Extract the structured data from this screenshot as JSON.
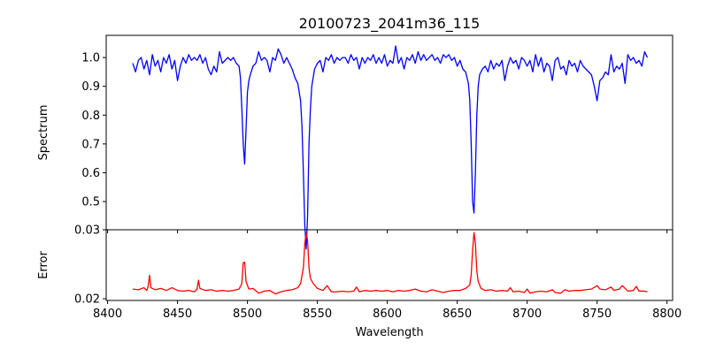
{
  "chart_data": [
    {
      "type": "line",
      "panel": "top",
      "title": "20100723_2041m36_115",
      "xlabel": "",
      "ylabel": "Spectrum",
      "xlim": [
        8399,
        8804
      ],
      "ylim": [
        0.402,
        1.077
      ],
      "xticks": [
        8400,
        8450,
        8500,
        8550,
        8600,
        8650,
        8700,
        8750,
        8800
      ],
      "yticks": [
        0.5,
        0.6,
        0.7,
        0.8,
        0.9,
        1.0
      ],
      "ytick_labels": [
        "0.5",
        "0.6",
        "0.7",
        "0.8",
        "0.9",
        "1.0"
      ],
      "grid": false,
      "series": [
        {
          "name": "Spectrum",
          "color": "#0000ff",
          "x": [
            8418,
            8420,
            8422,
            8424,
            8426,
            8428,
            8430,
            8432,
            8434,
            8436,
            8438,
            8440,
            8442,
            8444,
            8446,
            8448,
            8450,
            8452,
            8454,
            8456,
            8458,
            8460,
            8462,
            8464,
            8466,
            8468,
            8470,
            8472,
            8474,
            8476,
            8478,
            8480,
            8482,
            8484,
            8486,
            8488,
            8490,
            8492,
            8494,
            8495,
            8496,
            8497,
            8498,
            8499,
            8500,
            8501,
            8502,
            8504,
            8506,
            8508,
            8510,
            8512,
            8514,
            8516,
            8518,
            8520,
            8522,
            8524,
            8526,
            8528,
            8530,
            8532,
            8534,
            8536,
            8538,
            8539,
            8540,
            8541,
            8542,
            8543,
            8544,
            8545,
            8546,
            8548,
            8550,
            8552,
            8554,
            8556,
            8558,
            8560,
            8562,
            8564,
            8566,
            8568,
            8570,
            8572,
            8574,
            8576,
            8578,
            8580,
            8582,
            8584,
            8586,
            8588,
            8590,
            8592,
            8594,
            8596,
            8598,
            8600,
            8602,
            8604,
            8606,
            8608,
            8610,
            8612,
            8614,
            8616,
            8618,
            8620,
            8622,
            8624,
            8626,
            8628,
            8630,
            8632,
            8634,
            8636,
            8638,
            8640,
            8642,
            8644,
            8646,
            8648,
            8650,
            8652,
            8654,
            8656,
            8658,
            8659,
            8660,
            8661,
            8662,
            8663,
            8664,
            8665,
            8666,
            8668,
            8670,
            8672,
            8674,
            8676,
            8678,
            8680,
            8682,
            8684,
            8686,
            8688,
            8690,
            8692,
            8694,
            8696,
            8698,
            8700,
            8702,
            8704,
            8706,
            8708,
            8710,
            8712,
            8714,
            8716,
            8718,
            8720,
            8722,
            8724,
            8726,
            8728,
            8730,
            8732,
            8734,
            8736,
            8738,
            8740,
            8742,
            8744,
            8746,
            8748,
            8750,
            8752,
            8754,
            8756,
            8758,
            8760,
            8762,
            8764,
            8766,
            8768,
            8770,
            8772,
            8774,
            8776,
            8778,
            8780,
            8782,
            8784,
            8786
          ],
          "y": [
            0.98,
            0.95,
            0.99,
            1.0,
            0.96,
            0.99,
            0.94,
            1.01,
            0.97,
            0.99,
            0.95,
            1.0,
            0.98,
            1.01,
            0.96,
            0.99,
            0.92,
            0.97,
            1.0,
            0.98,
            1.01,
            0.99,
            1.0,
            0.99,
            1.01,
            0.98,
            1.0,
            0.96,
            0.94,
            0.97,
            0.95,
            1.02,
            0.98,
            0.99,
            1.0,
            0.99,
            1.0,
            0.98,
            0.97,
            0.93,
            0.82,
            0.7,
            0.63,
            0.75,
            0.88,
            0.92,
            0.94,
            0.97,
            0.98,
            1.02,
            0.99,
            1.0,
            0.99,
            0.95,
            1.0,
            0.99,
            1.03,
            1.01,
            0.98,
            1.0,
            0.98,
            0.96,
            0.93,
            0.91,
            0.85,
            0.76,
            0.6,
            0.42,
            0.335,
            0.45,
            0.7,
            0.82,
            0.9,
            0.96,
            0.98,
            0.99,
            0.95,
            1.0,
            0.99,
            1.01,
            0.98,
            1.0,
            0.99,
            1.0,
            1.0,
            0.98,
            1.01,
            0.99,
            1.0,
            0.96,
            1.0,
            0.98,
            1.0,
            0.99,
            1.01,
            0.98,
            1.0,
            0.98,
            1.01,
            0.97,
            0.99,
            0.98,
            1.04,
            0.98,
            1.0,
            0.96,
            1.0,
            0.99,
            1.01,
            0.98,
            1.02,
            0.99,
            1.01,
            0.99,
            1.0,
            1.01,
            0.99,
            1.0,
            0.98,
            1.01,
            1.0,
            1.01,
            0.99,
            1.0,
            0.97,
            0.99,
            0.96,
            0.95,
            0.91,
            0.85,
            0.7,
            0.5,
            0.46,
            0.6,
            0.8,
            0.9,
            0.94,
            0.96,
            0.97,
            0.95,
            0.99,
            0.96,
            0.98,
            0.97,
            0.99,
            0.92,
            0.97,
            1.0,
            0.98,
            0.99,
            0.96,
            1.0,
            0.99,
            0.97,
            0.99,
            0.95,
            1.01,
            0.97,
            1.0,
            0.95,
            0.98,
            0.97,
            0.92,
            0.99,
            1.0,
            0.96,
            0.97,
            0.94,
            0.99,
            0.97,
            0.98,
            0.95,
            0.99,
            0.97,
            0.96,
            0.95,
            0.94,
            0.9,
            0.85,
            0.92,
            0.93,
            0.95,
            0.94,
            1.01,
            0.95,
            0.97,
            0.96,
            0.98,
            0.91,
            1.01,
            0.99,
            1.0,
            0.98,
            0.99,
            0.97,
            1.02,
            1.0
          ]
        }
      ]
    },
    {
      "type": "line",
      "panel": "bottom",
      "title": "",
      "xlabel": "Wavelength",
      "ylabel": "Error",
      "xlim": [
        8399,
        8804
      ],
      "ylim": [
        0.01975,
        0.03
      ],
      "xticks": [
        8400,
        8450,
        8500,
        8550,
        8600,
        8650,
        8700,
        8750,
        8800
      ],
      "xtick_labels": [
        "8400",
        "8450",
        "8500",
        "8550",
        "8600",
        "8650",
        "8700",
        "8750",
        "8800"
      ],
      "yticks": [
        0.02,
        0.03
      ],
      "ytick_labels": [
        "0.02",
        "0.03"
      ],
      "grid": false,
      "series": [
        {
          "name": "Error",
          "color": "#ff0000",
          "x": [
            8418,
            8422,
            8426,
            8428,
            8429,
            8430,
            8431,
            8434,
            8438,
            8442,
            8446,
            8450,
            8454,
            8458,
            8462,
            8464,
            8465,
            8466,
            8470,
            8474,
            8478,
            8482,
            8486,
            8490,
            8494,
            8496,
            8497,
            8498,
            8499,
            8501,
            8504,
            8508,
            8512,
            8516,
            8520,
            8524,
            8528,
            8532,
            8536,
            8538,
            8540,
            8541,
            8542,
            8543,
            8544,
            8545,
            8547,
            8550,
            8554,
            8557,
            8560,
            8564,
            8568,
            8572,
            8576,
            8578,
            8580,
            8584,
            8588,
            8592,
            8596,
            8600,
            8604,
            8608,
            8612,
            8616,
            8620,
            8624,
            8628,
            8632,
            8636,
            8640,
            8644,
            8648,
            8652,
            8656,
            8659,
            8660,
            8661,
            8662,
            8663,
            8664,
            8665,
            8667,
            8670,
            8674,
            8678,
            8682,
            8686,
            8688,
            8690,
            8694,
            8698,
            8700,
            8702,
            8706,
            8710,
            8714,
            8718,
            8720,
            8724,
            8727,
            8730,
            8734,
            8738,
            8742,
            8746,
            8750,
            8752,
            8756,
            8760,
            8762,
            8766,
            8768,
            8772,
            8776,
            8778,
            8780,
            8784,
            8786
          ],
          "y": [
            0.0214,
            0.0213,
            0.0216,
            0.0212,
            0.0218,
            0.0234,
            0.0216,
            0.0213,
            0.0215,
            0.0212,
            0.0216,
            0.0212,
            0.0211,
            0.0212,
            0.021,
            0.0214,
            0.0227,
            0.0215,
            0.0212,
            0.0213,
            0.0211,
            0.0212,
            0.0211,
            0.0212,
            0.0214,
            0.0222,
            0.0252,
            0.0253,
            0.0225,
            0.0214,
            0.0215,
            0.0208,
            0.0211,
            0.0212,
            0.0207,
            0.021,
            0.0212,
            0.0213,
            0.0216,
            0.0222,
            0.0245,
            0.028,
            0.0295,
            0.0285,
            0.0245,
            0.023,
            0.0222,
            0.0215,
            0.0212,
            0.0219,
            0.021,
            0.021,
            0.0211,
            0.021,
            0.0211,
            0.0217,
            0.021,
            0.0212,
            0.0211,
            0.0212,
            0.0211,
            0.0212,
            0.021,
            0.0212,
            0.0211,
            0.0212,
            0.0214,
            0.0211,
            0.021,
            0.0213,
            0.0211,
            0.0209,
            0.0211,
            0.0212,
            0.0212,
            0.0215,
            0.022,
            0.0235,
            0.027,
            0.0296,
            0.028,
            0.024,
            0.0225,
            0.0215,
            0.0212,
            0.0213,
            0.0211,
            0.0212,
            0.0211,
            0.0216,
            0.021,
            0.0211,
            0.0209,
            0.0214,
            0.0208,
            0.021,
            0.0211,
            0.021,
            0.0213,
            0.0209,
            0.0208,
            0.0213,
            0.0211,
            0.0212,
            0.0212,
            0.0213,
            0.0214,
            0.0219,
            0.0214,
            0.0213,
            0.0217,
            0.0212,
            0.0214,
            0.0219,
            0.0211,
            0.0212,
            0.0218,
            0.0211,
            0.0211,
            0.021
          ]
        }
      ]
    }
  ]
}
